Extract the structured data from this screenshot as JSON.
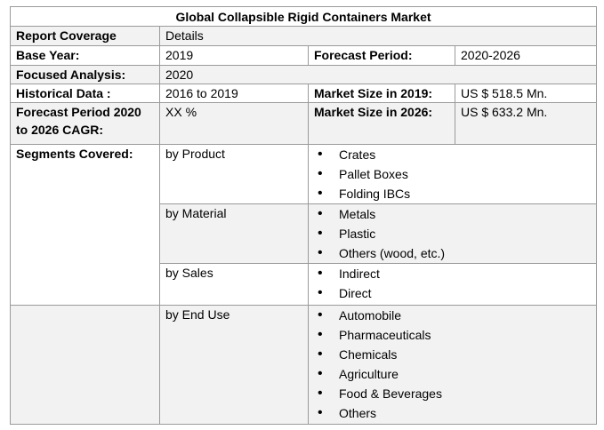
{
  "title": "Global Collapsible Rigid Containers Market",
  "rows": {
    "report_coverage": {
      "label": "Report Coverage",
      "value": "Details"
    },
    "base_year": {
      "label": "Base Year:",
      "value": "2019",
      "label2": "Forecast Period:",
      "value2": "2020-2026"
    },
    "focused_analysis": {
      "label": "Focused Analysis:",
      "value": "2020"
    },
    "historical_data": {
      "label": "Historical Data :",
      "value": "2016 to 2019",
      "label2": "Market Size in 2019:",
      "value2": "US $ 518.5 Mn."
    },
    "cagr": {
      "label": "Forecast Period 2020 to 2026 CAGR:",
      "value": "XX %",
      "label2": "Market Size in 2026:",
      "value2": "US $ 633.2 Mn."
    }
  },
  "segments": {
    "label": "Segments Covered:",
    "groups": [
      {
        "name": "by Product",
        "items": [
          "Crates",
          "Pallet Boxes",
          "Folding IBCs"
        ]
      },
      {
        "name": "by Material",
        "items": [
          "Metals",
          "Plastic",
          "Others (wood, etc.)"
        ]
      },
      {
        "name": "by Sales",
        "items": [
          "Indirect",
          "Direct"
        ]
      },
      {
        "name": "by End Use",
        "items": [
          "Automobile",
          "Pharmaceuticals",
          "Chemicals",
          "Agriculture",
          "Food & Beverages",
          "Others"
        ]
      }
    ]
  }
}
